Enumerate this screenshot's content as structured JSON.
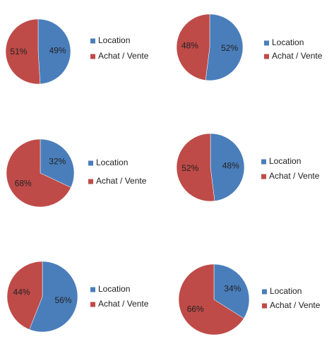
{
  "chart_data": [
    {
      "type": "pie",
      "categories": [
        "Location",
        "Achat / Vente"
      ],
      "values": [
        49,
        51
      ],
      "value_labels": [
        "49%",
        "51%"
      ],
      "colors": [
        "#4a7ebb",
        "#be4b48"
      ]
    },
    {
      "type": "pie",
      "categories": [
        "Location",
        "Achat / Vente"
      ],
      "values": [
        52,
        48
      ],
      "value_labels": [
        "52%",
        "48%"
      ],
      "colors": [
        "#4a7ebb",
        "#be4b48"
      ]
    },
    {
      "type": "pie",
      "categories": [
        "Location",
        "Achat / Vente"
      ],
      "values": [
        32,
        68
      ],
      "value_labels": [
        "32%",
        "68%"
      ],
      "colors": [
        "#4a7ebb",
        "#be4b48"
      ]
    },
    {
      "type": "pie",
      "categories": [
        "Location",
        "Achat / Vente"
      ],
      "values": [
        48,
        52
      ],
      "value_labels": [
        "48%",
        "52%"
      ],
      "colors": [
        "#4a7ebb",
        "#be4b48"
      ]
    },
    {
      "type": "pie",
      "categories": [
        "Location",
        "Achat / Vente"
      ],
      "values": [
        56,
        44
      ],
      "value_labels": [
        "56%",
        "44%"
      ],
      "colors": [
        "#4a7ebb",
        "#be4b48"
      ]
    },
    {
      "type": "pie",
      "categories": [
        "Location",
        "Achat / Vente"
      ],
      "values": [
        34,
        66
      ],
      "value_labels": [
        "34%",
        "66%"
      ],
      "colors": [
        "#4a7ebb",
        "#be4b48"
      ]
    }
  ]
}
